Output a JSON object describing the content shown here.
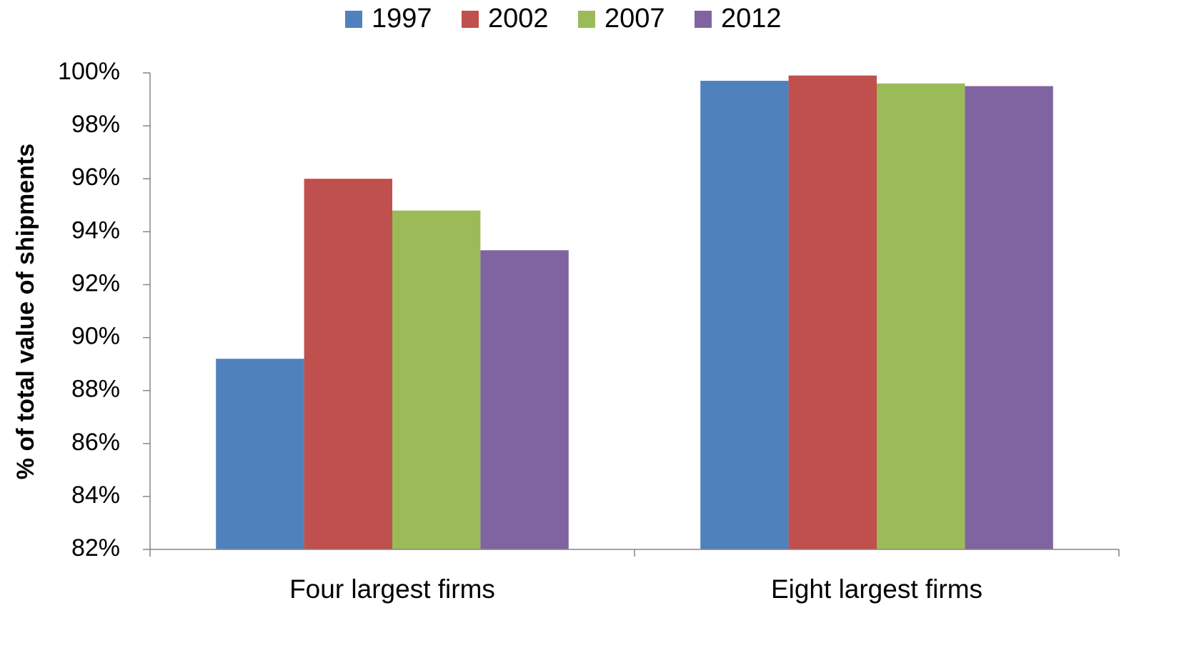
{
  "chart_data": {
    "type": "bar",
    "y_label": "% of total value of shipments",
    "categories": [
      "Four largest firms",
      "Eight largest firms"
    ],
    "series": [
      {
        "name": "1997",
        "color": "#4f81bd",
        "values": [
          89.2,
          99.7
        ]
      },
      {
        "name": "2002",
        "color": "#c0504d",
        "values": [
          96.0,
          99.9
        ]
      },
      {
        "name": "2007",
        "color": "#9bbb59",
        "values": [
          94.8,
          99.6
        ]
      },
      {
        "name": "2012",
        "color": "#8064a2",
        "values": [
          93.3,
          99.5
        ]
      }
    ],
    "ylim": [
      82,
      100
    ],
    "yticks": [
      {
        "value": 82,
        "label": "82%"
      },
      {
        "value": 84,
        "label": "84%"
      },
      {
        "value": 86,
        "label": "86%"
      },
      {
        "value": 88,
        "label": "88%"
      },
      {
        "value": 90,
        "label": "90%"
      },
      {
        "value": 92,
        "label": "92%"
      },
      {
        "value": 94,
        "label": "94%"
      },
      {
        "value": 96,
        "label": "96%"
      },
      {
        "value": 98,
        "label": "98%"
      },
      {
        "value": 100,
        "label": "100%"
      }
    ],
    "legend": "top"
  }
}
